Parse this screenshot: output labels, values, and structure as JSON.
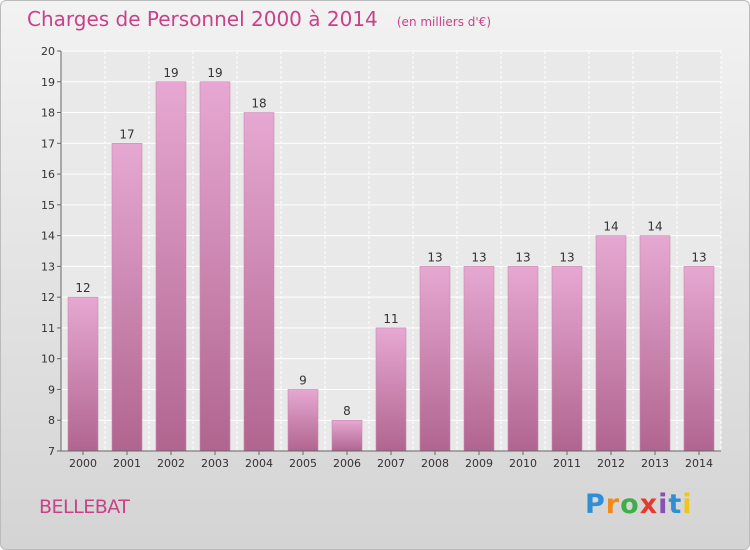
{
  "chart_data": {
    "type": "bar",
    "title": "Charges de Personnel 2000 à 2014",
    "subtitle": "(en milliers d'€)",
    "categories": [
      "2000",
      "2001",
      "2002",
      "2003",
      "2004",
      "2005",
      "2006",
      "2007",
      "2008",
      "2009",
      "2010",
      "2011",
      "2012",
      "2013",
      "2014"
    ],
    "values": [
      12,
      17,
      19,
      19,
      18,
      9,
      8,
      11,
      13,
      13,
      13,
      13,
      14,
      14,
      13
    ],
    "ylim": [
      7,
      20
    ],
    "yticks": [
      7,
      8,
      9,
      10,
      11,
      12,
      13,
      14,
      15,
      16,
      17,
      18,
      19,
      20
    ],
    "xlabel": "",
    "ylabel": "",
    "grid": true,
    "legend": "none",
    "colors": {
      "bar_top": "#e6a8d2",
      "bar_bottom": "#b0658f",
      "title": "#c8428a",
      "axis_text": "#333333"
    }
  },
  "commune": "BELLEBAT",
  "logo": {
    "text": "Proxiti",
    "letter_colors": [
      "#2f8fd6",
      "#f08a1c",
      "#3fae49",
      "#e63a2e",
      "#8a4fb5",
      "#2f8fd6",
      "#f0c419"
    ]
  }
}
